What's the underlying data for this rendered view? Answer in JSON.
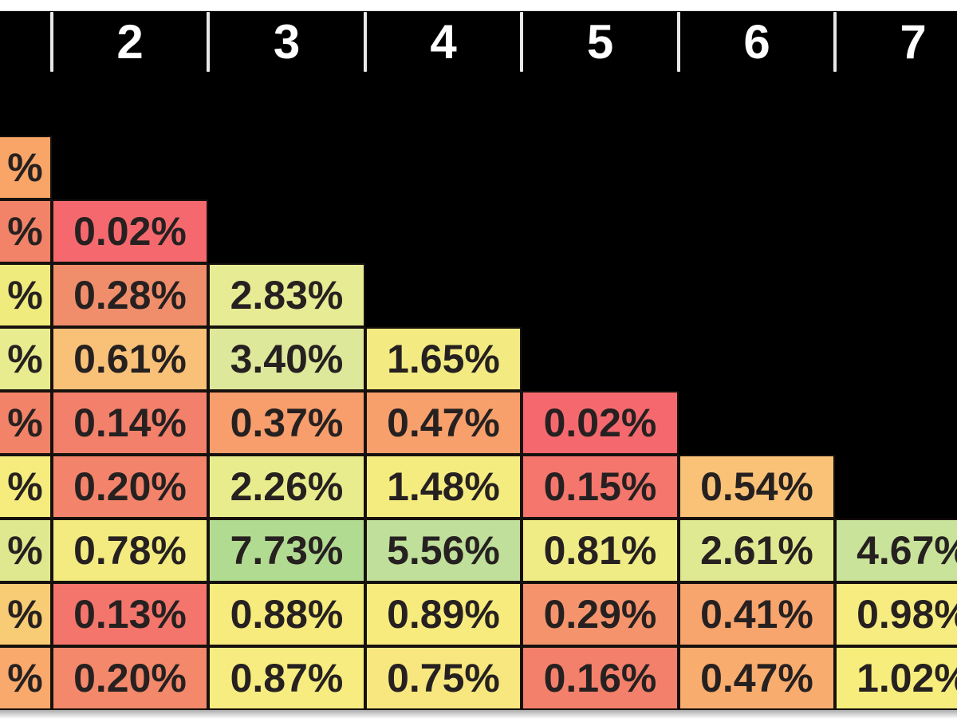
{
  "header": {
    "column_labels": [
      "2",
      "3",
      "4",
      "5",
      "6",
      "7"
    ]
  },
  "grid": {
    "rows": [
      {
        "cells": [
          {
            "col": 1,
            "text": "%",
            "bg": "#F8A567"
          }
        ]
      },
      {
        "cells": [
          {
            "col": 1,
            "text": "%",
            "bg": "#F28368"
          },
          {
            "col": 2,
            "text": "0.02%",
            "bg": "#F5696E"
          }
        ]
      },
      {
        "cells": [
          {
            "col": 1,
            "text": "%",
            "bg": "#F0EB7D"
          },
          {
            "col": 2,
            "text": "0.28%",
            "bg": "#F08E6B"
          },
          {
            "col": 3,
            "text": "2.83%",
            "bg": "#E6EB94"
          }
        ]
      },
      {
        "cells": [
          {
            "col": 1,
            "text": "%",
            "bg": "#E8EC8F"
          },
          {
            "col": 2,
            "text": "0.61%",
            "bg": "#F9C178"
          },
          {
            "col": 3,
            "text": "3.40%",
            "bg": "#DDE89B"
          },
          {
            "col": 4,
            "text": "1.65%",
            "bg": "#F3EB82"
          }
        ]
      },
      {
        "cells": [
          {
            "col": 1,
            "text": "%",
            "bg": "#F28368"
          },
          {
            "col": 2,
            "text": "0.14%",
            "bg": "#F3806B"
          },
          {
            "col": 3,
            "text": "0.37%",
            "bg": "#F79E6C"
          },
          {
            "col": 4,
            "text": "0.47%",
            "bg": "#F7A06C"
          },
          {
            "col": 5,
            "text": "0.02%",
            "bg": "#F5696E"
          }
        ]
      },
      {
        "cells": [
          {
            "col": 1,
            "text": "%",
            "bg": "#F5EC7D"
          },
          {
            "col": 2,
            "text": "0.20%",
            "bg": "#F3846B"
          },
          {
            "col": 3,
            "text": "2.26%",
            "bg": "#E9EC8C"
          },
          {
            "col": 4,
            "text": "1.48%",
            "bg": "#F5EC80"
          },
          {
            "col": 5,
            "text": "0.15%",
            "bg": "#F4766D"
          },
          {
            "col": 6,
            "text": "0.54%",
            "bg": "#F9C276"
          }
        ]
      },
      {
        "cells": [
          {
            "col": 1,
            "text": "%",
            "bg": "#DFE88E"
          },
          {
            "col": 2,
            "text": "0.78%",
            "bg": "#F3EB7F"
          },
          {
            "col": 3,
            "text": "7.73%",
            "bg": "#B2DB92"
          },
          {
            "col": 4,
            "text": "5.56%",
            "bg": "#BFDF9B"
          },
          {
            "col": 5,
            "text": "0.81%",
            "bg": "#F0EC85"
          },
          {
            "col": 6,
            "text": "2.61%",
            "bg": "#DFE992"
          },
          {
            "col": 7,
            "text": "4.67%",
            "bg": "#C9E39B"
          }
        ]
      },
      {
        "cells": [
          {
            "col": 1,
            "text": "%",
            "bg": "#F8CC74"
          },
          {
            "col": 2,
            "text": "0.13%",
            "bg": "#F4756B"
          },
          {
            "col": 3,
            "text": "0.88%",
            "bg": "#F7EB7D"
          },
          {
            "col": 4,
            "text": "0.89%",
            "bg": "#F7EB7D"
          },
          {
            "col": 5,
            "text": "0.29%",
            "bg": "#F5946C"
          },
          {
            "col": 6,
            "text": "0.41%",
            "bg": "#F7A46D"
          },
          {
            "col": 7,
            "text": "0.98%",
            "bg": "#F6EC80"
          }
        ]
      },
      {
        "cells": [
          {
            "col": 1,
            "text": "%",
            "bg": "#F9A96C"
          },
          {
            "col": 2,
            "text": "0.20%",
            "bg": "#F3886B"
          },
          {
            "col": 3,
            "text": "0.87%",
            "bg": "#F7EC7F"
          },
          {
            "col": 4,
            "text": "0.75%",
            "bg": "#F8E77F"
          },
          {
            "col": 5,
            "text": "0.16%",
            "bg": "#F3806B"
          },
          {
            "col": 6,
            "text": "0.47%",
            "bg": "#F8AC6E"
          },
          {
            "col": 7,
            "text": "1.02%",
            "bg": "#F6ED7D"
          }
        ]
      }
    ]
  },
  "chart_data": {
    "type": "heatmap",
    "x_labels": [
      "2",
      "3",
      "4",
      "5",
      "6",
      "7"
    ],
    "x_axis_position": "top",
    "note_cutoff": "leftmost column and row labels cropped off-screen; only % suffix visible",
    "matrix_pct": [
      [
        "?",
        null,
        null,
        null,
        null,
        null,
        null
      ],
      [
        "?",
        0.02,
        null,
        null,
        null,
        null,
        null
      ],
      [
        "?",
        0.28,
        2.83,
        null,
        null,
        null,
        null
      ],
      [
        "?",
        0.61,
        3.4,
        1.65,
        null,
        null,
        null
      ],
      [
        "?",
        0.14,
        0.37,
        0.47,
        0.02,
        null,
        null
      ],
      [
        "?",
        0.2,
        2.26,
        1.48,
        0.15,
        0.54,
        null
      ],
      [
        "?",
        0.78,
        7.73,
        5.56,
        0.81,
        2.61,
        4.67
      ],
      [
        "?",
        0.13,
        0.88,
        0.89,
        0.29,
        0.41,
        0.98
      ],
      [
        "?",
        0.2,
        0.87,
        0.75,
        0.16,
        0.47,
        1.02
      ]
    ],
    "color_scale": {
      "low": "#F5696E",
      "mid": "#F7EB7D",
      "high": "#B2DB92"
    }
  },
  "style": {
    "background": "#000000",
    "top_strip": "#ffffff",
    "bottom_strip": "#e9e9e9",
    "tick_color": "#e8e8e8",
    "header_text": "#ffffff",
    "cell_text": "#262120",
    "grid_line": "#17110d"
  }
}
